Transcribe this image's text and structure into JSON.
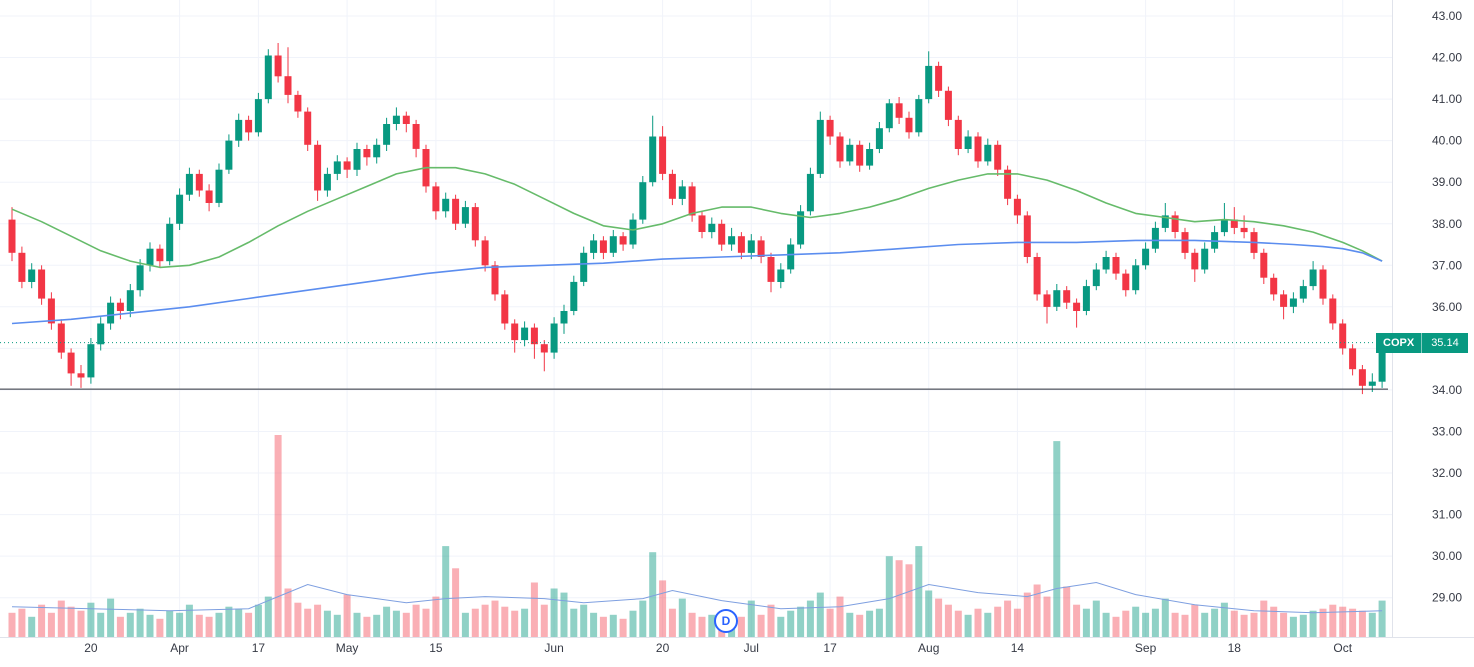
{
  "chart_data": {
    "type": "candlestick",
    "symbol": "COPX",
    "interval_badge": "D",
    "last_price": "35.14",
    "last_price_value": 35.14,
    "trendline_price": 34.02,
    "legend_position": "none",
    "grid": true,
    "price_axis": {
      "min": 29,
      "max": 43,
      "step": 1,
      "values": [
        43,
        42,
        41,
        40,
        39,
        38,
        37,
        36,
        35,
        34,
        33,
        32,
        31,
        30,
        29
      ],
      "labels": [
        "43.00",
        "42.00",
        "41.00",
        "40.00",
        "39.00",
        "38.00",
        "37.00",
        "36.00",
        "35.00",
        "34.00",
        "33.00",
        "32.00",
        "31.00",
        "30.00",
        "29.00"
      ]
    },
    "time_axis": [
      {
        "label": "20",
        "index": 8
      },
      {
        "label": "Apr",
        "index": 17
      },
      {
        "label": "17",
        "index": 25
      },
      {
        "label": "May",
        "index": 34
      },
      {
        "label": "15",
        "index": 43
      },
      {
        "label": "Jun",
        "index": 55
      },
      {
        "label": "20",
        "index": 66
      },
      {
        "label": "Jul",
        "index": 75
      },
      {
        "label": "17",
        "index": 83
      },
      {
        "label": "Aug",
        "index": 93
      },
      {
        "label": "14",
        "index": 102
      },
      {
        "label": "Sep",
        "index": 115
      },
      {
        "label": "18",
        "index": 124
      },
      {
        "label": "Oct",
        "index": 135
      }
    ],
    "candles": [
      [
        38.1,
        38.4,
        37.1,
        37.3
      ],
      [
        37.3,
        37.45,
        36.45,
        36.6
      ],
      [
        36.6,
        37.05,
        36.45,
        36.9
      ],
      [
        36.9,
        37.0,
        36.05,
        36.2
      ],
      [
        36.2,
        36.35,
        35.45,
        35.6
      ],
      [
        35.6,
        35.7,
        34.75,
        34.9
      ],
      [
        34.9,
        35.0,
        34.1,
        34.4
      ],
      [
        34.4,
        34.6,
        34.05,
        34.3
      ],
      [
        34.3,
        35.25,
        34.15,
        35.1
      ],
      [
        35.1,
        35.75,
        34.95,
        35.6
      ],
      [
        35.6,
        36.25,
        35.45,
        36.1
      ],
      [
        36.1,
        36.2,
        35.7,
        35.9
      ],
      [
        35.9,
        36.55,
        35.75,
        36.4
      ],
      [
        36.4,
        37.15,
        36.25,
        37.0
      ],
      [
        37.0,
        37.55,
        36.85,
        37.4
      ],
      [
        37.4,
        37.5,
        36.95,
        37.1
      ],
      [
        37.1,
        38.15,
        37.0,
        38.0
      ],
      [
        38.0,
        38.85,
        37.85,
        38.7
      ],
      [
        38.7,
        39.35,
        38.55,
        39.2
      ],
      [
        39.2,
        39.3,
        38.65,
        38.8
      ],
      [
        38.8,
        38.95,
        38.3,
        38.5
      ],
      [
        38.5,
        39.45,
        38.4,
        39.3
      ],
      [
        39.3,
        40.15,
        39.2,
        40.0
      ],
      [
        40.0,
        40.65,
        39.85,
        40.5
      ],
      [
        40.5,
        40.6,
        40.0,
        40.2
      ],
      [
        40.2,
        41.15,
        40.1,
        41.0
      ],
      [
        41.0,
        42.2,
        40.9,
        42.05
      ],
      [
        42.05,
        42.35,
        41.4,
        41.55
      ],
      [
        41.55,
        42.25,
        40.9,
        41.1
      ],
      [
        41.1,
        41.2,
        40.55,
        40.7
      ],
      [
        40.7,
        40.8,
        39.75,
        39.9
      ],
      [
        39.9,
        40.0,
        38.55,
        38.8
      ],
      [
        38.8,
        39.35,
        38.65,
        39.2
      ],
      [
        39.2,
        39.65,
        39.05,
        39.5
      ],
      [
        39.5,
        39.6,
        39.1,
        39.3
      ],
      [
        39.3,
        39.95,
        39.15,
        39.8
      ],
      [
        39.8,
        39.9,
        39.4,
        39.6
      ],
      [
        39.6,
        40.05,
        39.45,
        39.9
      ],
      [
        39.9,
        40.55,
        39.75,
        40.4
      ],
      [
        40.4,
        40.8,
        40.25,
        40.6
      ],
      [
        40.6,
        40.7,
        40.2,
        40.4
      ],
      [
        40.4,
        40.5,
        39.6,
        39.8
      ],
      [
        39.8,
        39.9,
        38.75,
        38.9
      ],
      [
        38.9,
        39.0,
        38.1,
        38.3
      ],
      [
        38.3,
        38.75,
        38.15,
        38.6
      ],
      [
        38.6,
        38.7,
        37.85,
        38.0
      ],
      [
        38.0,
        38.55,
        37.9,
        38.4
      ],
      [
        38.4,
        38.5,
        37.45,
        37.6
      ],
      [
        37.6,
        37.7,
        36.85,
        37.0
      ],
      [
        37.0,
        37.1,
        36.15,
        36.3
      ],
      [
        36.3,
        36.4,
        35.45,
        35.6
      ],
      [
        35.6,
        35.7,
        34.9,
        35.2
      ],
      [
        35.2,
        35.65,
        35.05,
        35.5
      ],
      [
        35.5,
        35.6,
        34.75,
        35.1
      ],
      [
        35.1,
        35.2,
        34.45,
        34.9
      ],
      [
        34.9,
        35.75,
        34.75,
        35.6
      ],
      [
        35.6,
        36.05,
        35.35,
        35.9
      ],
      [
        35.9,
        36.75,
        35.8,
        36.6
      ],
      [
        36.6,
        37.45,
        36.5,
        37.3
      ],
      [
        37.3,
        37.75,
        37.15,
        37.6
      ],
      [
        37.6,
        37.7,
        37.15,
        37.3
      ],
      [
        37.3,
        37.85,
        37.2,
        37.7
      ],
      [
        37.7,
        37.8,
        37.35,
        37.5
      ],
      [
        37.5,
        38.25,
        37.4,
        38.1
      ],
      [
        38.1,
        39.15,
        38.0,
        39.0
      ],
      [
        39.0,
        40.6,
        38.9,
        40.1
      ],
      [
        40.1,
        40.35,
        39.05,
        39.2
      ],
      [
        39.2,
        39.3,
        38.45,
        38.6
      ],
      [
        38.6,
        39.05,
        38.45,
        38.9
      ],
      [
        38.9,
        39.0,
        38.05,
        38.2
      ],
      [
        38.2,
        38.3,
        37.65,
        37.8
      ],
      [
        37.8,
        38.15,
        37.65,
        38.0
      ],
      [
        38.0,
        38.1,
        37.35,
        37.5
      ],
      [
        37.5,
        37.9,
        37.35,
        37.7
      ],
      [
        37.7,
        37.8,
        37.15,
        37.3
      ],
      [
        37.3,
        37.75,
        37.15,
        37.6
      ],
      [
        37.6,
        37.7,
        37.05,
        37.2
      ],
      [
        37.2,
        37.3,
        36.35,
        36.6
      ],
      [
        36.6,
        37.05,
        36.45,
        36.9
      ],
      [
        36.9,
        37.65,
        36.8,
        37.5
      ],
      [
        37.5,
        38.45,
        37.4,
        38.3
      ],
      [
        38.3,
        39.35,
        38.2,
        39.2
      ],
      [
        39.2,
        40.7,
        39.1,
        40.5
      ],
      [
        40.5,
        40.6,
        39.9,
        40.1
      ],
      [
        40.1,
        40.2,
        39.35,
        39.5
      ],
      [
        39.5,
        40.05,
        39.4,
        39.9
      ],
      [
        39.9,
        40.0,
        39.25,
        39.4
      ],
      [
        39.4,
        39.95,
        39.3,
        39.8
      ],
      [
        39.8,
        40.45,
        39.7,
        40.3
      ],
      [
        40.3,
        41.0,
        40.2,
        40.9
      ],
      [
        40.9,
        41.05,
        40.4,
        40.55
      ],
      [
        40.55,
        40.7,
        40.05,
        40.2
      ],
      [
        40.2,
        41.1,
        40.1,
        41.0
      ],
      [
        41.0,
        42.15,
        40.9,
        41.8
      ],
      [
        41.8,
        41.9,
        41.05,
        41.2
      ],
      [
        41.2,
        41.3,
        40.35,
        40.5
      ],
      [
        40.5,
        40.6,
        39.65,
        39.8
      ],
      [
        39.8,
        40.25,
        39.7,
        40.1
      ],
      [
        40.1,
        40.2,
        39.35,
        39.5
      ],
      [
        39.5,
        40.05,
        39.4,
        39.9
      ],
      [
        39.9,
        40.0,
        39.15,
        39.3
      ],
      [
        39.3,
        39.4,
        38.45,
        38.6
      ],
      [
        38.6,
        38.7,
        38.0,
        38.2
      ],
      [
        38.2,
        38.3,
        37.05,
        37.2
      ],
      [
        37.2,
        37.3,
        36.15,
        36.3
      ],
      [
        36.3,
        36.4,
        35.6,
        36.0
      ],
      [
        36.0,
        36.55,
        35.9,
        36.4
      ],
      [
        36.4,
        36.5,
        35.95,
        36.1
      ],
      [
        36.1,
        36.2,
        35.5,
        35.9
      ],
      [
        35.9,
        36.65,
        35.8,
        36.5
      ],
      [
        36.5,
        37.05,
        36.4,
        36.9
      ],
      [
        36.9,
        37.35,
        36.8,
        37.2
      ],
      [
        37.2,
        37.3,
        36.65,
        36.8
      ],
      [
        36.8,
        36.9,
        36.25,
        36.4
      ],
      [
        36.4,
        37.15,
        36.3,
        37.0
      ],
      [
        37.0,
        37.55,
        36.9,
        37.4
      ],
      [
        37.4,
        38.05,
        37.3,
        37.9
      ],
      [
        37.9,
        38.5,
        37.8,
        38.2
      ],
      [
        38.2,
        38.3,
        37.65,
        37.8
      ],
      [
        37.8,
        37.9,
        37.15,
        37.3
      ],
      [
        37.3,
        37.4,
        36.6,
        36.9
      ],
      [
        36.9,
        37.55,
        36.8,
        37.4
      ],
      [
        37.4,
        37.95,
        37.3,
        37.8
      ],
      [
        37.8,
        38.5,
        37.7,
        38.1
      ],
      [
        38.1,
        38.4,
        37.75,
        37.9
      ],
      [
        37.9,
        38.2,
        37.65,
        37.8
      ],
      [
        37.8,
        37.9,
        37.15,
        37.3
      ],
      [
        37.3,
        37.4,
        36.55,
        36.7
      ],
      [
        36.7,
        36.8,
        36.15,
        36.3
      ],
      [
        36.3,
        36.4,
        35.7,
        36.0
      ],
      [
        36.0,
        36.35,
        35.85,
        36.2
      ],
      [
        36.2,
        36.65,
        36.1,
        36.5
      ],
      [
        36.5,
        37.1,
        36.4,
        36.9
      ],
      [
        36.9,
        37.0,
        36.05,
        36.2
      ],
      [
        36.2,
        36.3,
        35.45,
        35.6
      ],
      [
        35.6,
        35.7,
        34.85,
        35.0
      ],
      [
        35.0,
        35.1,
        34.35,
        34.5
      ],
      [
        34.5,
        34.6,
        33.9,
        34.1
      ],
      [
        34.1,
        34.4,
        33.95,
        34.2
      ],
      [
        34.2,
        35.35,
        34.05,
        35.14
      ]
    ],
    "volume": [
      12,
      14,
      10,
      16,
      12,
      18,
      15,
      13,
      17,
      12,
      19,
      10,
      12,
      14,
      11,
      9,
      13,
      12,
      16,
      11,
      10,
      12,
      15,
      14,
      12,
      16,
      20,
      100,
      24,
      17,
      14,
      16,
      13,
      11,
      21,
      12,
      10,
      11,
      15,
      13,
      12,
      16,
      14,
      20,
      45,
      34,
      12,
      14,
      16,
      18,
      15,
      13,
      14,
      27,
      16,
      24,
      22,
      14,
      16,
      12,
      10,
      11,
      9,
      13,
      18,
      42,
      28,
      14,
      19,
      12,
      10,
      11,
      9,
      12,
      10,
      18,
      11,
      16,
      10,
      13,
      15,
      18,
      22,
      14,
      20,
      12,
      11,
      13,
      14,
      40,
      38,
      36,
      45,
      23,
      19,
      16,
      13,
      11,
      14,
      12,
      15,
      18,
      14,
      22,
      26,
      20,
      97,
      25,
      16,
      14,
      18,
      12,
      10,
      13,
      15,
      12,
      14,
      19,
      12,
      11,
      16,
      12,
      14,
      17,
      13,
      11,
      12,
      18,
      15,
      12,
      10,
      11,
      13,
      14,
      16,
      15,
      14,
      13,
      12,
      18
    ],
    "ma_fast": {
      "color": "#66bb6a",
      "points": [
        [
          0,
          38.35
        ],
        [
          3,
          38.05
        ],
        [
          6,
          37.7
        ],
        [
          9,
          37.35
        ],
        [
          12,
          37.1
        ],
        [
          15,
          36.95
        ],
        [
          18,
          37.0
        ],
        [
          21,
          37.2
        ],
        [
          24,
          37.55
        ],
        [
          27,
          37.95
        ],
        [
          30,
          38.3
        ],
        [
          33,
          38.6
        ],
        [
          36,
          38.9
        ],
        [
          39,
          39.2
        ],
        [
          42,
          39.35
        ],
        [
          45,
          39.35
        ],
        [
          48,
          39.2
        ],
        [
          51,
          38.95
        ],
        [
          54,
          38.6
        ],
        [
          57,
          38.25
        ],
        [
          60,
          37.95
        ],
        [
          63,
          37.85
        ],
        [
          66,
          38.0
        ],
        [
          69,
          38.25
        ],
        [
          72,
          38.4
        ],
        [
          75,
          38.4
        ],
        [
          78,
          38.25
        ],
        [
          81,
          38.15
        ],
        [
          84,
          38.25
        ],
        [
          87,
          38.4
        ],
        [
          90,
          38.6
        ],
        [
          93,
          38.85
        ],
        [
          96,
          39.05
        ],
        [
          99,
          39.2
        ],
        [
          102,
          39.2
        ],
        [
          105,
          39.05
        ],
        [
          108,
          38.8
        ],
        [
          111,
          38.5
        ],
        [
          114,
          38.25
        ],
        [
          117,
          38.15
        ],
        [
          120,
          38.05
        ],
        [
          123,
          38.1
        ],
        [
          126,
          38.05
        ],
        [
          129,
          37.95
        ],
        [
          132,
          37.8
        ],
        [
          135,
          37.55
        ],
        [
          137,
          37.35
        ],
        [
          139,
          37.1
        ]
      ]
    },
    "ma_slow": {
      "color": "#5b8def",
      "points": [
        [
          0,
          35.6
        ],
        [
          6,
          35.7
        ],
        [
          12,
          35.85
        ],
        [
          18,
          36.0
        ],
        [
          24,
          36.2
        ],
        [
          30,
          36.4
        ],
        [
          36,
          36.6
        ],
        [
          42,
          36.8
        ],
        [
          48,
          36.95
        ],
        [
          54,
          37.0
        ],
        [
          60,
          37.05
        ],
        [
          66,
          37.15
        ],
        [
          72,
          37.2
        ],
        [
          78,
          37.25
        ],
        [
          84,
          37.3
        ],
        [
          90,
          37.4
        ],
        [
          96,
          37.5
        ],
        [
          102,
          37.55
        ],
        [
          108,
          37.55
        ],
        [
          114,
          37.6
        ],
        [
          120,
          37.6
        ],
        [
          126,
          37.55
        ],
        [
          130,
          37.5
        ],
        [
          133,
          37.45
        ],
        [
          135,
          37.4
        ],
        [
          137,
          37.3
        ],
        [
          139,
          37.1
        ]
      ]
    },
    "volume_ma": {
      "color": "#7e9fe0",
      "points": [
        [
          0,
          15
        ],
        [
          8,
          14
        ],
        [
          16,
          13
        ],
        [
          24,
          14
        ],
        [
          27,
          20
        ],
        [
          30,
          26
        ],
        [
          34,
          21
        ],
        [
          40,
          17
        ],
        [
          44,
          19
        ],
        [
          48,
          20
        ],
        [
          54,
          19
        ],
        [
          58,
          17
        ],
        [
          64,
          19
        ],
        [
          67,
          23
        ],
        [
          72,
          18
        ],
        [
          78,
          14
        ],
        [
          84,
          15
        ],
        [
          89,
          19
        ],
        [
          93,
          26
        ],
        [
          98,
          22
        ],
        [
          103,
          20
        ],
        [
          106,
          24
        ],
        [
          110,
          27
        ],
        [
          114,
          21
        ],
        [
          120,
          16
        ],
        [
          126,
          13
        ],
        [
          132,
          12
        ],
        [
          139,
          13
        ]
      ]
    },
    "colors": {
      "up": "#089981",
      "down": "#f23645",
      "vol_up": "rgba(8,153,129,0.45)",
      "vol_down": "rgba(242,54,69,0.40)",
      "grid": "#f0f3fa",
      "axis_text": "#363a45",
      "axis_border": "#e0e3eb",
      "badge_bg": "#089981",
      "trendline": "#2a2e39",
      "last_price_line": "#089981",
      "logo_blue": "#2962ff"
    }
  }
}
